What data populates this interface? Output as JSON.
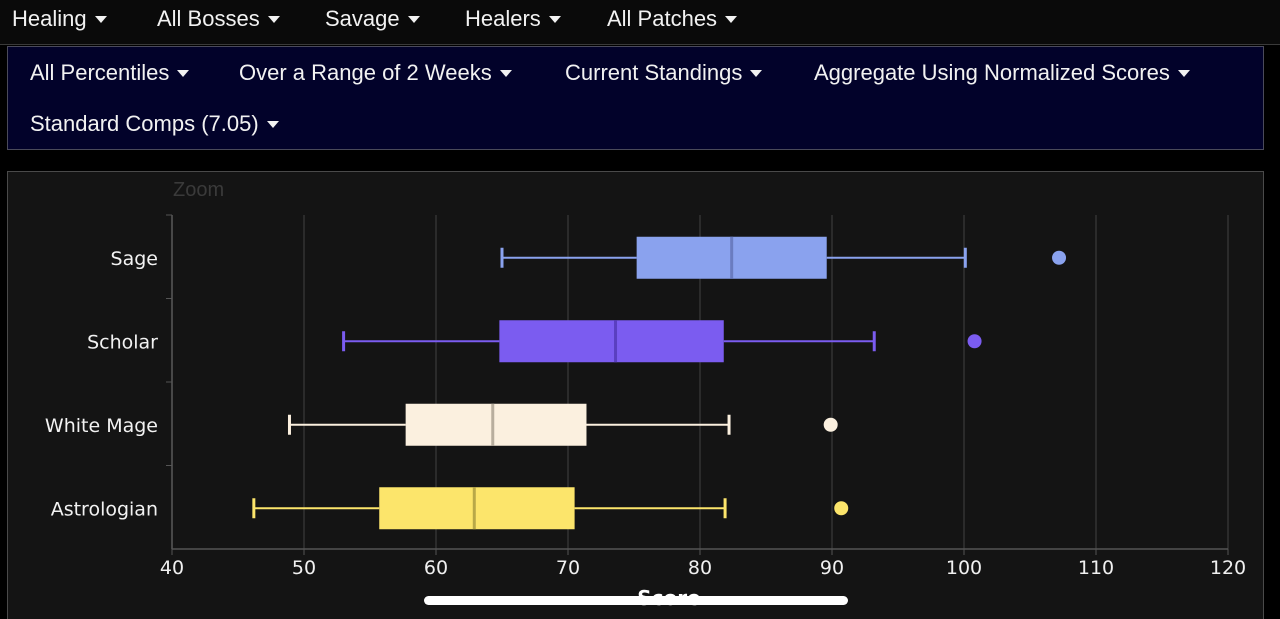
{
  "top_menu": [
    {
      "label": "Healing"
    },
    {
      "label": "All Bosses"
    },
    {
      "label": "Savage"
    },
    {
      "label": "Healers"
    },
    {
      "label": "All Patches"
    }
  ],
  "sub_menu": [
    {
      "label": "All Percentiles"
    },
    {
      "label": "Over a Range of 2 Weeks"
    },
    {
      "label": "Current Standings"
    },
    {
      "label": "Aggregate Using Normalized Scores"
    },
    {
      "label": "Standard Comps (7.05)"
    }
  ],
  "zoom_label": "Zoom",
  "chart_data": {
    "type": "box",
    "orientation": "horizontal",
    "xlabel": "Score",
    "xlim": [
      40,
      120
    ],
    "xticks": [
      40,
      50,
      60,
      70,
      80,
      90,
      100,
      110,
      120
    ],
    "grid": true,
    "series": [
      {
        "name": "Sage",
        "min": 65,
        "q1": 75.2,
        "median": 82.4,
        "q3": 89.6,
        "max": 100.1,
        "outliers": [
          107.2
        ],
        "color": "#8aa2ee",
        "median_color": "#6a7cc0"
      },
      {
        "name": "Scholar",
        "min": 53,
        "q1": 64.8,
        "median": 73.6,
        "q3": 81.8,
        "max": 93.2,
        "outliers": [
          100.8
        ],
        "color": "#7b5cf0",
        "median_color": "#5a3fc0"
      },
      {
        "name": "White Mage",
        "min": 48.9,
        "q1": 57.7,
        "median": 64.3,
        "q3": 71.4,
        "max": 82.2,
        "outliers": [
          89.9
        ],
        "color": "#fbf0df",
        "median_color": "#b8ae9e"
      },
      {
        "name": "Astrologian",
        "min": 46.2,
        "q1": 55.7,
        "median": 62.9,
        "q3": 70.5,
        "max": 81.9,
        "outliers": [
          90.7
        ],
        "color": "#fce56b",
        "median_color": "#b8a848"
      }
    ]
  }
}
